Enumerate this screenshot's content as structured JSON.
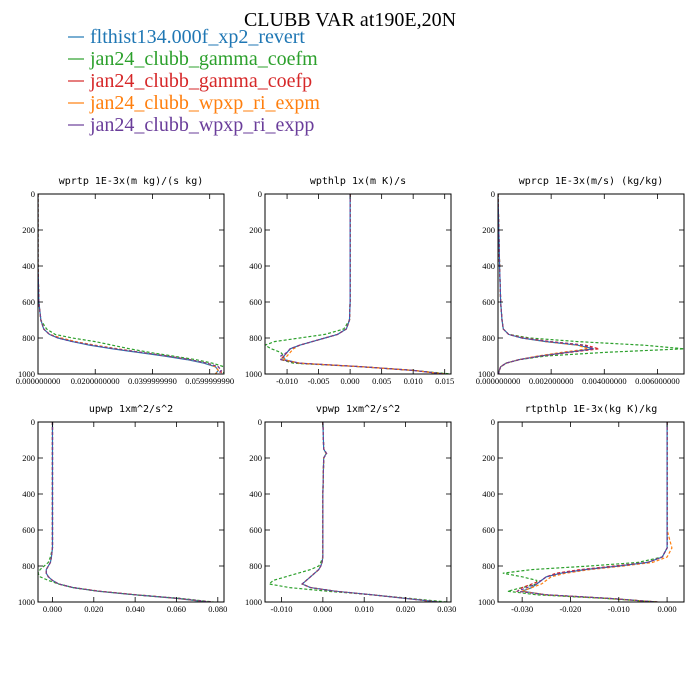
{
  "figure_title": "CLUBB VAR at190E,20N",
  "colors": {
    "flthist134.000f_xp2_revert": "#1f77b4",
    "jan24_clubb_gamma_coefm": "#2ca02c",
    "jan24_clubb_gamma_coefp": "#d62728",
    "jan24_clubb_wpxp_ri_expm": "#ff7f0e",
    "jan24_clubb_wpxp_ri_expp": "#6a3d9a"
  },
  "legend": [
    {
      "label": "flthist134.000f_xp2_revert",
      "color": "#1f77b4"
    },
    {
      "label": "jan24_clubb_gamma_coefm",
      "color": "#2ca02c"
    },
    {
      "label": "jan24_clubb_gamma_coefp",
      "color": "#d62728"
    },
    {
      "label": "jan24_clubb_wpxp_ri_expm",
      "color": "#ff7f0e"
    },
    {
      "label": "jan24_clubb_wpxp_ri_expp",
      "color": "#6a3d9a"
    }
  ],
  "chart_data": [
    {
      "type": "line",
      "title": "wprtp  1E-3x(m kg)/(s kg)",
      "xlim": [
        0,
        0.065
      ],
      "ylim": [
        1000,
        0
      ],
      "xticks": [
        0,
        0.02,
        0.04,
        0.06
      ],
      "xtick_labels": [
        "0.000000000",
        "0.0200000000",
        "0.0399999990",
        "0.0599999990"
      ],
      "yticks": [
        0,
        200,
        400,
        600,
        800,
        1000
      ],
      "y": [
        0,
        200,
        400,
        600,
        700,
        750,
        780,
        800,
        820,
        840,
        860,
        880,
        900,
        920,
        940,
        960,
        980,
        1000
      ],
      "series": [
        {
          "color": "#1f77b4",
          "values": [
            0,
            0,
            0,
            0.0003,
            0.001,
            0.002,
            0.004,
            0.007,
            0.012,
            0.018,
            0.026,
            0.035,
            0.044,
            0.052,
            0.058,
            0.062,
            0.063,
            0.062
          ]
        },
        {
          "color": "#2ca02c",
          "values": [
            0,
            0,
            0,
            0.0003,
            0.001,
            0.003,
            0.006,
            0.012,
            0.02,
            0.026,
            0.032,
            0.039,
            0.047,
            0.055,
            0.061,
            0.065,
            0.066,
            0.064
          ]
        },
        {
          "color": "#d62728",
          "values": [
            0,
            0,
            0,
            0.0003,
            0.001,
            0.002,
            0.004,
            0.008,
            0.013,
            0.019,
            0.027,
            0.036,
            0.045,
            0.053,
            0.059,
            0.063,
            0.064,
            0.064
          ]
        },
        {
          "color": "#ff7f0e",
          "values": [
            0,
            0,
            0,
            0.0003,
            0.001,
            0.002,
            0.004,
            0.008,
            0.013,
            0.02,
            0.028,
            0.036,
            0.045,
            0.053,
            0.059,
            0.062,
            0.063,
            0.062
          ]
        },
        {
          "color": "#6a3d9a",
          "values": [
            0,
            0,
            0,
            0.0003,
            0.001,
            0.002,
            0.004,
            0.007,
            0.012,
            0.019,
            0.027,
            0.036,
            0.045,
            0.053,
            0.059,
            0.063,
            0.064,
            0.063
          ]
        }
      ]
    },
    {
      "type": "line",
      "title": "wpthlp  1x(m K)/s",
      "xlim": [
        -0.0135,
        0.016
      ],
      "ylim": [
        1000,
        0
      ],
      "xticks": [
        -0.01,
        -0.005,
        0,
        0.005,
        0.01,
        0.015
      ],
      "xtick_labels": [
        "-0.010",
        "-0.005",
        "0.000",
        "0.005",
        "0.010",
        "0.015"
      ],
      "yticks": [
        0,
        200,
        400,
        600,
        800,
        1000
      ],
      "y": [
        0,
        200,
        400,
        600,
        700,
        750,
        780,
        800,
        820,
        840,
        860,
        880,
        900,
        920,
        940,
        960,
        980,
        1000
      ],
      "series": [
        {
          "color": "#1f77b4",
          "values": [
            0,
            0,
            0,
            0,
            -0.0001,
            -0.0006,
            -0.002,
            -0.004,
            -0.006,
            -0.008,
            -0.0095,
            -0.01,
            -0.0105,
            -0.0105,
            -0.008,
            0.002,
            0.01,
            0.015
          ]
        },
        {
          "color": "#2ca02c",
          "values": [
            0,
            0,
            0,
            0,
            -0.0001,
            -0.001,
            -0.004,
            -0.008,
            -0.012,
            -0.0135,
            -0.0125,
            -0.011,
            -0.0105,
            -0.011,
            -0.009,
            0.002,
            0.01,
            0.016
          ]
        },
        {
          "color": "#d62728",
          "values": [
            0,
            0,
            0,
            0,
            -0.0001,
            -0.0006,
            -0.002,
            -0.004,
            -0.006,
            -0.008,
            -0.0095,
            -0.01,
            -0.0105,
            -0.011,
            -0.008,
            0.002,
            0.01,
            0.015
          ]
        },
        {
          "color": "#ff7f0e",
          "values": [
            0,
            0,
            0,
            0,
            -0.0001,
            -0.0006,
            -0.002,
            -0.004,
            -0.006,
            -0.008,
            -0.009,
            -0.0095,
            -0.01,
            -0.0105,
            -0.008,
            0.002,
            0.01,
            0.015
          ]
        },
        {
          "color": "#6a3d9a",
          "values": [
            0,
            0,
            0,
            0,
            -0.0001,
            -0.0006,
            -0.002,
            -0.004,
            -0.006,
            -0.008,
            -0.0095,
            -0.01,
            -0.011,
            -0.011,
            -0.008,
            0.002,
            0.01,
            0.015
          ]
        }
      ]
    },
    {
      "type": "line",
      "title": "wprcp  1E-3x(m/s) (kg/kg)",
      "xlim": [
        0,
        0.007
      ],
      "ylim": [
        1000,
        0
      ],
      "xticks": [
        0,
        0.002,
        0.004,
        0.006
      ],
      "xtick_labels": [
        "0.000000000",
        "0.002000000",
        "0.004000000",
        "0.006000000"
      ],
      "yticks": [
        0,
        200,
        400,
        600,
        800,
        1000
      ],
      "y": [
        0,
        200,
        400,
        600,
        700,
        750,
        780,
        800,
        820,
        840,
        860,
        880,
        900,
        920,
        940,
        960,
        980,
        1000
      ],
      "series": [
        {
          "color": "#1f77b4",
          "values": [
            0,
            3e-05,
            6e-05,
            0.0001,
            0.00015,
            0.0002,
            0.0004,
            0.0009,
            0.0018,
            0.003,
            0.0036,
            0.0026,
            0.0016,
            0.0008,
            0.0003,
            0.0001,
            5e-05,
            2e-05
          ]
        },
        {
          "color": "#2ca02c",
          "values": [
            0,
            3e-05,
            6e-05,
            0.0001,
            0.00015,
            0.0002,
            0.0004,
            0.0012,
            0.003,
            0.0055,
            0.007,
            0.004,
            0.0018,
            0.0008,
            0.0003,
            0.0001,
            5e-05,
            2e-05
          ]
        },
        {
          "color": "#d62728",
          "values": [
            0,
            3e-05,
            6e-05,
            0.0001,
            0.00015,
            0.0002,
            0.0004,
            0.001,
            0.002,
            0.0033,
            0.0038,
            0.0027,
            0.0016,
            0.0008,
            0.0003,
            0.0001,
            5e-05,
            2e-05
          ]
        },
        {
          "color": "#ff7f0e",
          "values": [
            0,
            3e-05,
            6e-05,
            0.0001,
            0.00015,
            0.0002,
            0.0004,
            0.0009,
            0.0018,
            0.003,
            0.0034,
            0.0024,
            0.0015,
            0.0008,
            0.0003,
            0.0001,
            5e-05,
            2e-05
          ]
        },
        {
          "color": "#6a3d9a",
          "values": [
            0,
            3e-05,
            6e-05,
            0.0001,
            0.00015,
            0.0002,
            0.0004,
            0.0009,
            0.0019,
            0.0032,
            0.0036,
            0.0026,
            0.0016,
            0.0008,
            0.0003,
            0.0001,
            5e-05,
            2e-05
          ]
        }
      ]
    },
    {
      "type": "line",
      "title": "upwp  1xm^2/s^2",
      "xlim": [
        -0.007,
        0.083
      ],
      "ylim": [
        1000,
        0
      ],
      "xticks": [
        0,
        0.02,
        0.04,
        0.06,
        0.08
      ],
      "xtick_labels": [
        "0.000",
        "0.020",
        "0.040",
        "0.060",
        "0.080"
      ],
      "yticks": [
        0,
        200,
        400,
        600,
        800,
        1000
      ],
      "y": [
        0,
        200,
        400,
        600,
        700,
        750,
        780,
        800,
        820,
        840,
        860,
        880,
        900,
        920,
        940,
        960,
        980,
        1000
      ],
      "series": [
        {
          "color": "#1f77b4",
          "values": [
            0,
            0,
            0,
            0,
            0,
            -0.0005,
            -0.001,
            -0.002,
            -0.003,
            -0.003,
            -0.002,
            0,
            0.003,
            0.01,
            0.022,
            0.04,
            0.06,
            0.075
          ]
        },
        {
          "color": "#2ca02c",
          "values": [
            0,
            0,
            0,
            0,
            0,
            -0.001,
            -0.002,
            -0.004,
            -0.006,
            -0.007,
            -0.006,
            -0.002,
            0.003,
            0.01,
            0.022,
            0.04,
            0.062,
            0.078
          ]
        },
        {
          "color": "#d62728",
          "values": [
            0,
            0,
            0,
            0,
            0,
            -0.0005,
            -0.001,
            -0.002,
            -0.003,
            -0.003,
            -0.002,
            0,
            0.003,
            0.01,
            0.023,
            0.041,
            0.061,
            0.077
          ]
        },
        {
          "color": "#ff7f0e",
          "values": [
            0,
            0,
            0,
            0,
            0,
            -0.0005,
            -0.001,
            -0.002,
            -0.003,
            -0.003,
            -0.002,
            0,
            0.003,
            0.01,
            0.022,
            0.04,
            0.06,
            0.076
          ]
        },
        {
          "color": "#6a3d9a",
          "values": [
            0,
            0,
            0,
            0,
            0,
            -0.0005,
            -0.001,
            -0.002,
            -0.003,
            -0.003,
            -0.002,
            0,
            0.003,
            0.01,
            0.022,
            0.04,
            0.061,
            0.077
          ]
        }
      ]
    },
    {
      "type": "line",
      "title": "vpwp  1xm^2/s^2",
      "xlim": [
        -0.014,
        0.031
      ],
      "ylim": [
        1000,
        0
      ],
      "xticks": [
        -0.01,
        0,
        0.01,
        0.02,
        0.03
      ],
      "xtick_labels": [
        "-0.010",
        "0.000",
        "0.010",
        "0.020",
        "0.030"
      ],
      "yticks": [
        0,
        200,
        400,
        600,
        800,
        1000
      ],
      "y": [
        0,
        150,
        175,
        200,
        400,
        600,
        700,
        750,
        780,
        800,
        820,
        840,
        860,
        880,
        900,
        920,
        940,
        960,
        980,
        1000
      ],
      "series": [
        {
          "color": "#1f77b4",
          "values": [
            0,
            0.0002,
            0.0008,
            0.0002,
            0,
            0,
            0,
            0,
            -0.0002,
            -0.0005,
            -0.001,
            -0.002,
            -0.003,
            -0.004,
            -0.005,
            -0.003,
            0.003,
            0.012,
            0.02,
            0.028
          ]
        },
        {
          "color": "#2ca02c",
          "values": [
            0,
            0.0002,
            0.0008,
            0.0002,
            0,
            0,
            0,
            0,
            -0.0005,
            -0.001,
            -0.003,
            -0.006,
            -0.009,
            -0.012,
            -0.013,
            -0.008,
            0.001,
            0.012,
            0.021,
            0.03
          ]
        },
        {
          "color": "#d62728",
          "values": [
            0,
            0.0002,
            0.0009,
            0.0002,
            0,
            0,
            0,
            0,
            -0.0002,
            -0.0005,
            -0.001,
            -0.002,
            -0.003,
            -0.004,
            -0.005,
            -0.003,
            0.003,
            0.012,
            0.02,
            0.028
          ]
        },
        {
          "color": "#ff7f0e",
          "values": [
            0,
            0.0002,
            0.0008,
            0.0002,
            0,
            0,
            0,
            0,
            -0.0002,
            -0.0005,
            -0.001,
            -0.002,
            -0.003,
            -0.004,
            -0.005,
            -0.003,
            0.003,
            0.012,
            0.02,
            0.028
          ]
        },
        {
          "color": "#6a3d9a",
          "values": [
            0,
            0.0002,
            0.0009,
            0.0002,
            0,
            0,
            0,
            0,
            -0.0002,
            -0.0005,
            -0.001,
            -0.002,
            -0.003,
            -0.004,
            -0.005,
            -0.003,
            0.003,
            0.012,
            0.02,
            0.028
          ]
        }
      ]
    },
    {
      "type": "line",
      "title": "rtpthlp  1E-3x(kg K)/kg",
      "xlim": [
        -0.035,
        0.0035
      ],
      "ylim": [
        1000,
        0
      ],
      "xticks": [
        -0.03,
        -0.02,
        -0.01,
        0
      ],
      "xtick_labels": [
        "-0.030",
        "-0.020",
        "-0.010",
        "0.000"
      ],
      "yticks": [
        0,
        200,
        400,
        600,
        800,
        1000
      ],
      "y": [
        0,
        200,
        400,
        600,
        700,
        750,
        780,
        800,
        820,
        840,
        860,
        880,
        900,
        920,
        940,
        960,
        980,
        1000
      ],
      "series": [
        {
          "color": "#1f77b4",
          "values": [
            0,
            0,
            0,
            0,
            0,
            -0.001,
            -0.004,
            -0.01,
            -0.017,
            -0.022,
            -0.025,
            -0.026,
            -0.027,
            -0.028,
            -0.03,
            -0.025,
            -0.012,
            -0.002
          ]
        },
        {
          "color": "#2ca02c",
          "values": [
            0,
            0,
            0,
            0,
            0,
            -0.001,
            -0.006,
            -0.016,
            -0.028,
            -0.034,
            -0.03,
            -0.027,
            -0.027,
            -0.03,
            -0.033,
            -0.027,
            -0.013,
            -0.002
          ]
        },
        {
          "color": "#d62728",
          "values": [
            0,
            0,
            0,
            0,
            0,
            -0.001,
            -0.004,
            -0.011,
            -0.018,
            -0.023,
            -0.025,
            -0.026,
            -0.028,
            -0.03,
            -0.031,
            -0.025,
            -0.012,
            -0.002
          ]
        },
        {
          "color": "#ff7f0e",
          "values": [
            0,
            0,
            0,
            0,
            0.001,
            0,
            -0.003,
            -0.009,
            -0.016,
            -0.021,
            -0.024,
            -0.025,
            -0.026,
            -0.028,
            -0.03,
            -0.025,
            -0.012,
            -0.002
          ]
        },
        {
          "color": "#6a3d9a",
          "values": [
            0,
            0,
            0,
            0,
            0,
            -0.001,
            -0.004,
            -0.01,
            -0.017,
            -0.022,
            -0.025,
            -0.026,
            -0.027,
            -0.029,
            -0.031,
            -0.025,
            -0.012,
            -0.002
          ]
        }
      ]
    }
  ]
}
